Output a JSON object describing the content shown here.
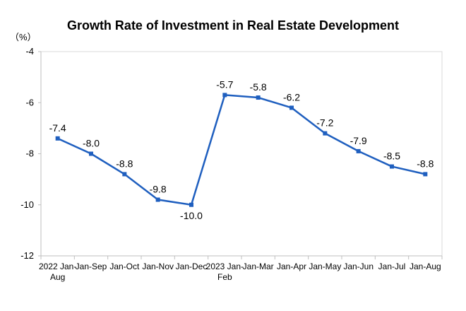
{
  "chart_data": {
    "type": "line",
    "title": "Growth Rate of Investment in Real Estate Development",
    "unit_label": "（%）",
    "xlabel": "",
    "ylabel": "",
    "ylim": [
      -12,
      -4
    ],
    "yticks": [
      -4,
      -6,
      -8,
      -10,
      -12
    ],
    "grid": false,
    "legend": "none",
    "categories": [
      [
        "2022 Jan-",
        "Aug"
      ],
      [
        "Jan-Sep"
      ],
      [
        "Jan-Oct"
      ],
      [
        "Jan-Nov"
      ],
      [
        "Jan-Dec"
      ],
      [
        "2023 Jan-",
        "Feb"
      ],
      [
        "Jan-Mar"
      ],
      [
        "Jan-Apr"
      ],
      [
        "Jan-May"
      ],
      [
        "Jan-Jun"
      ],
      [
        "Jan-Jul"
      ],
      [
        "Jan-Aug"
      ]
    ],
    "series": [
      {
        "values": [
          -7.4,
          -8.0,
          -8.8,
          -9.8,
          -10.0,
          -5.7,
          -5.8,
          -6.2,
          -7.2,
          -7.9,
          -8.5,
          -8.8
        ],
        "labels": [
          "-7.4",
          "-8.0",
          "-8.8",
          "-9.8",
          "-10.0",
          "-5.7",
          "-5.8",
          "-6.2",
          "-7.2",
          "-7.9",
          "-8.5",
          "-8.8"
        ],
        "color": "#1f5fbf"
      }
    ]
  }
}
